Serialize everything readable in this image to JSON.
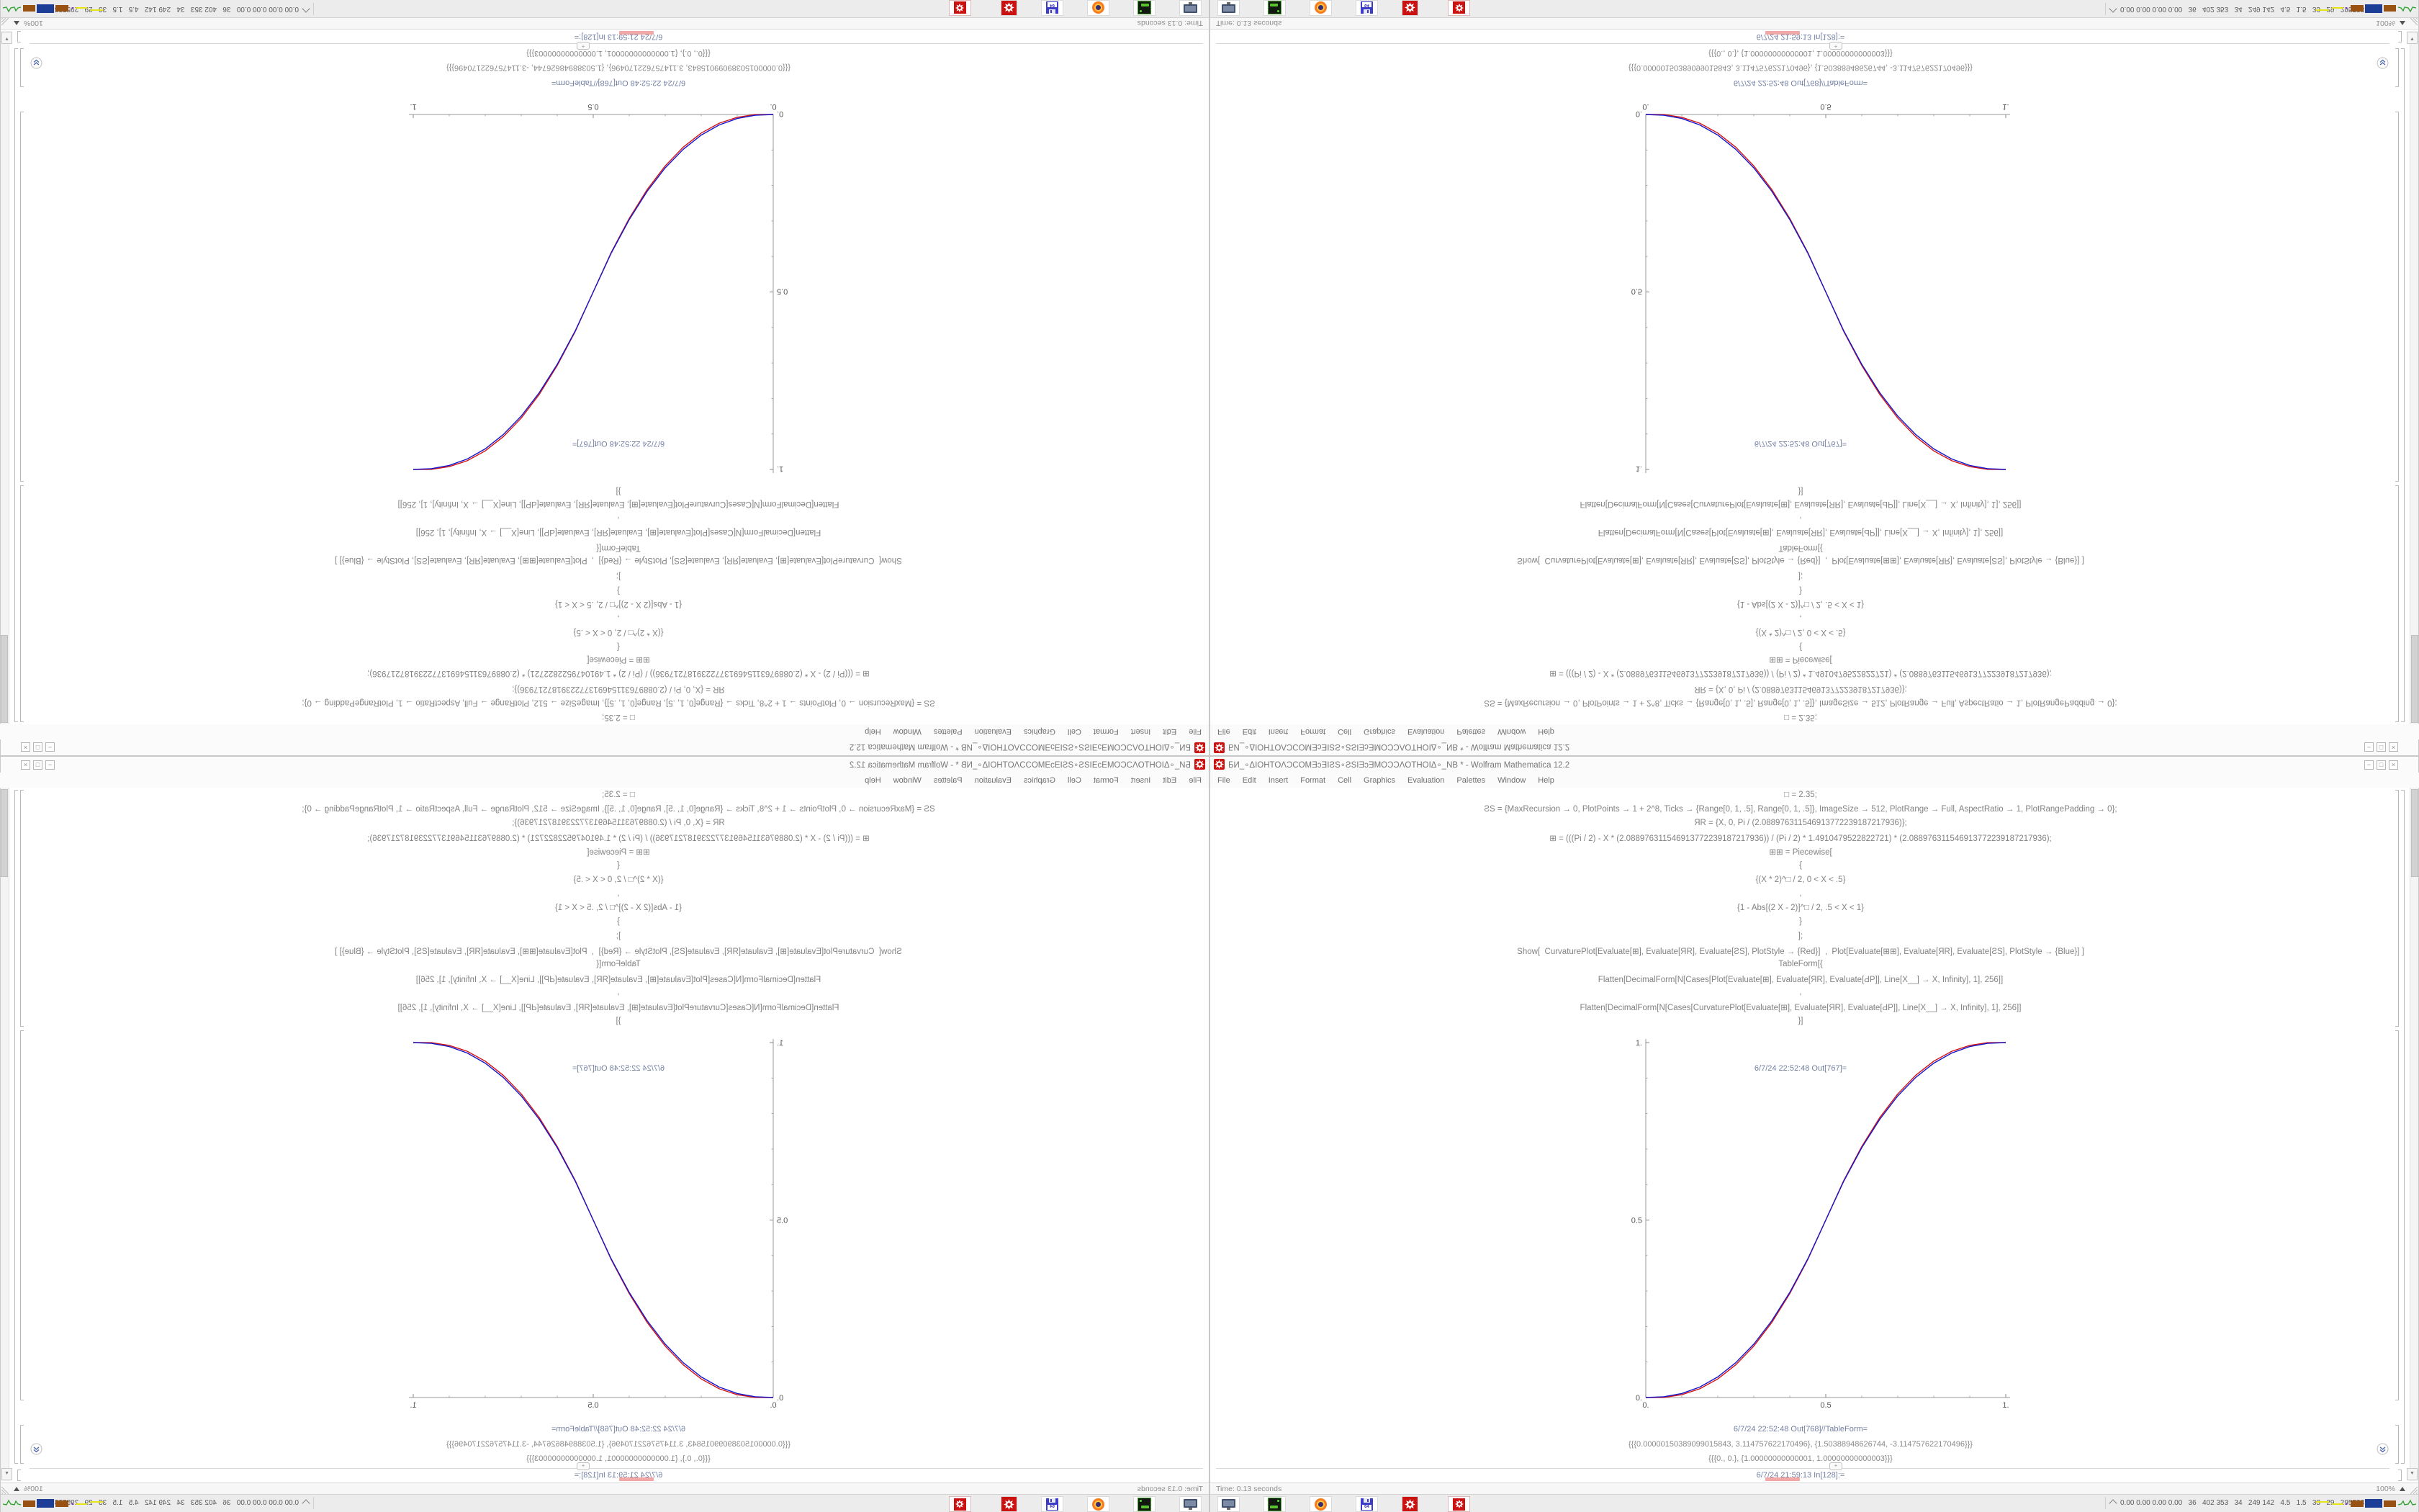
{
  "window": {
    "title": "БИ_∘ΔIOHTOΛƆCOMƎɔƎIƧS∘ƧSIƎɔƎMOƆƆΛOTHOIΔ∘_NB * - Wolfram Mathematica 12.2",
    "menu": [
      "File",
      "Edit",
      "Insert",
      "Format",
      "Cell",
      "Graphics",
      "Evaluation",
      "Palettes",
      "Window",
      "Help"
    ],
    "controls": {
      "minimize": "−",
      "maximize": "□",
      "close": "×"
    }
  },
  "notebook": {
    "code_lines": [
      "□ = 2.35;",
      "ƧS = {MaxRecursion → 0, PlotPoints → 1 + 2^8, Ticks → {Range[0, 1, .5], Range[0, 1, .5]}, ImageSize → 512, PlotRange → Full, AspectRatio → 1, PlotRangePadding → 0};",
      "ЯR = {X, 0, Pi / (2.088976311546913772239187217936)};",
      "⊞ = (((Pi / 2) - X * (2.088976311546913772239187217936)) / (Pi / 2) * 1.4910479522822721) * (2.088976311546913772239187217936);",
      "⊞⊞ = Piecewise[",
      "{",
      "{(X * 2)^□ / 2, 0 < X < .5}",
      ",",
      "{1 - Abs[(2 X - 2)]^□ / 2, .5 < X < 1}",
      "}",
      "];",
      "Show[  CurvaturePlot[Evaluate[⊞], Evaluate[ЯR], Evaluate[ƧS], PlotStyle → {Red}]  ,  Plot[Evaluate[⊞⊞], Evaluate[ЯR], Evaluate[ƧS], PlotStyle → {Blue}] ]",
      "TableForm[{",
      "Flatten[DecimalForm[N[Cases[Plot[Evaluate[⊞], Evaluate[ЯR], Evaluate[ԀP]], Line[X__] → X, Infinity], 1], 256]]",
      ",",
      "Flatten[DecimalForm[N[Cases[CurvaturePlot[Evaluate[⊞], Evaluate[ЯR], Evaluate[ԀP]], Line[X__] → X, Infinity], 1], 256]]",
      "}]"
    ],
    "plot_out_label": "6/7/24 22:52:48 Out[767]=",
    "table_out_label": "6/7/24 22:52:48 Out[768]//TableForm=",
    "table_rows": [
      "{{{0.00000150389099015843, 3.114757622170496}, {1.50388948626744, -3.114757622170496}}}",
      "{{{0., 0.}, {1.00000000000001, 1.00000000000003}}}"
    ],
    "insert_plus": "+",
    "new_cell_label": "6/7/24 21:59:13 In[128]:="
  },
  "chart_data": {
    "type": "line",
    "title": "",
    "xlabel": "",
    "ylabel": "",
    "xlim": [
      0,
      1
    ],
    "ylim": [
      0,
      1
    ],
    "x_ticks": [
      "0.",
      "0.5",
      "1."
    ],
    "y_ticks": [
      "0.",
      "0.5",
      "1."
    ],
    "grid": false,
    "legend": "none",
    "x": [
      0,
      0.05,
      0.1,
      0.15,
      0.2,
      0.25,
      0.3,
      0.35,
      0.4,
      0.45,
      0.5,
      0.55,
      0.6,
      0.65,
      0.7,
      0.75,
      0.8,
      0.85,
      0.9,
      0.95,
      1
    ],
    "series": [
      {
        "name": "CurvaturePlot (Red)",
        "color": "#d31414",
        "y": [
          0,
          0.0003,
          0.0079,
          0.0246,
          0.0524,
          0.0921,
          0.1447,
          0.2113,
          0.2927,
          0.3885,
          0.5,
          0.6115,
          0.7073,
          0.7887,
          0.8553,
          0.9079,
          0.9476,
          0.9754,
          0.9921,
          0.9997,
          1
        ]
      },
      {
        "name": "Plot (Blue)",
        "color": "#1616cc",
        "y": [
          0,
          0.0022,
          0.0114,
          0.0295,
          0.0581,
          0.0981,
          0.1504,
          0.2162,
          0.2962,
          0.3904,
          0.5,
          0.6096,
          0.7038,
          0.7838,
          0.8496,
          0.9019,
          0.9419,
          0.9705,
          0.9886,
          0.9978,
          1
        ]
      }
    ]
  },
  "statusbar": {
    "time": "Time: 0.13 seconds",
    "zoom": "100%"
  },
  "taskbar": {
    "icons": [
      "display",
      "disk-drive",
      "firefox",
      "floppy-64",
      "mathematica-gear",
      "mathematica-gear-boxed"
    ],
    "floppy_label": "64",
    "stats": "0.00 0.00 0.00 0.00   36   402 353   34   249 142   4.5   1.5   33   29   29553811"
  },
  "colors": {
    "accent_red": "#cc1111",
    "plot_red": "#d31414",
    "plot_blue": "#1616cc",
    "label_blue": "#7380a2",
    "axis_gray": "#8a8a8a"
  }
}
